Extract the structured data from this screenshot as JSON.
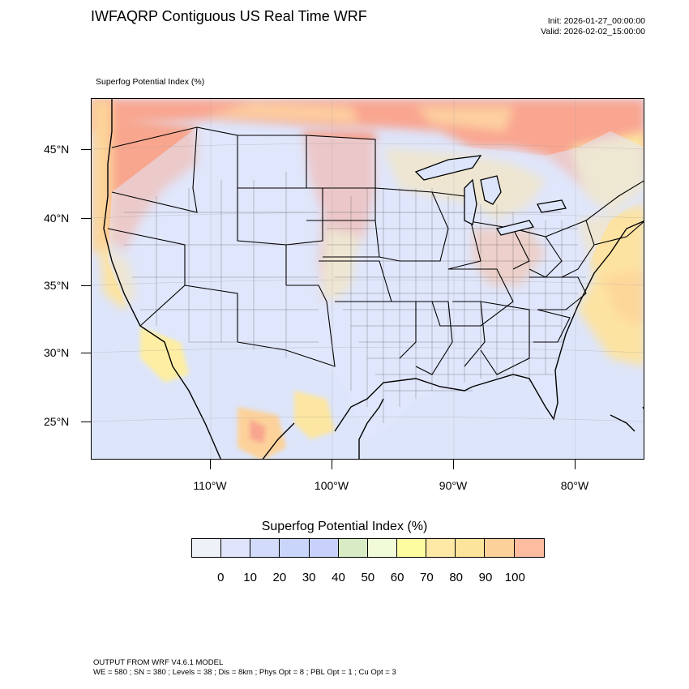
{
  "header": {
    "title": "IWFAQRP Contiguous US Real Time WRF",
    "init": "Init: 2026-01-27_00:00:00",
    "valid": "Valid: 2026-02-02_15:00:00"
  },
  "map": {
    "field_label": "Superfog Potential Index   (%)",
    "lat_labels": [
      "45°N",
      "40°N",
      "35°N",
      "30°N",
      "25°N"
    ],
    "lon_labels": [
      "110°W",
      "100°W",
      "90°W",
      "80°W"
    ],
    "colors": {
      "ocean": "#dfe6fb",
      "land_low": "#e4e9fb",
      "high": "#f9a88e",
      "mid": "#fde6a1",
      "yellow": "#fefca6",
      "border": "#000000"
    }
  },
  "colorbar": {
    "title": "Superfog Potential Index  (%)",
    "colors": [
      "#eef1f8",
      "#e0e5fb",
      "#d2dcfa",
      "#cad5fb",
      "#c7d1fb",
      "#d9ebc4",
      "#f2fbd8",
      "#fdfca1",
      "#fde8a6",
      "#fde49d",
      "#fdd19a",
      "#fdbba0"
    ],
    "labels": [
      "0",
      "10",
      "20",
      "30",
      "40",
      "50",
      "60",
      "70",
      "80",
      "90",
      "100"
    ]
  },
  "footer": {
    "line1": "OUTPUT FROM WRF V4.6.1 MODEL",
    "line2": "WE = 580 ; SN = 380 ; Levels = 38 ; Dis = 8km ; Phys Opt = 8 ; PBL Opt = 1 ; Cu Opt = 3"
  }
}
